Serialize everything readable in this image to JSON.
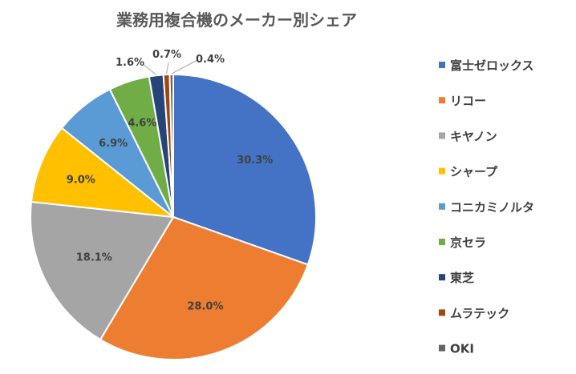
{
  "chart_data": {
    "type": "pie",
    "title": "業務用複合機のメーカー別シェア",
    "categories": [
      "富士ゼロックス",
      "リコー",
      "キヤノン",
      "シャープ",
      "コニカミノルタ",
      "京セラ",
      "東芝",
      "ムラテック",
      "OKI"
    ],
    "values": [
      30.3,
      28.0,
      18.1,
      9.0,
      6.9,
      4.6,
      1.6,
      0.7,
      0.4
    ],
    "labels": [
      "30.3%",
      "28.0%",
      "18.1%",
      "9.0%",
      "6.9%",
      "4.6%",
      "1.6%",
      "0.7%",
      "0.4%"
    ],
    "colors": [
      "#4472C4",
      "#ED7D31",
      "#A5A5A5",
      "#FFC000",
      "#5B9BD5",
      "#70AD47",
      "#264478",
      "#9E480E",
      "#636363"
    ],
    "legend_position": "right",
    "start_angle_deg": 0,
    "direction": "clockwise"
  }
}
